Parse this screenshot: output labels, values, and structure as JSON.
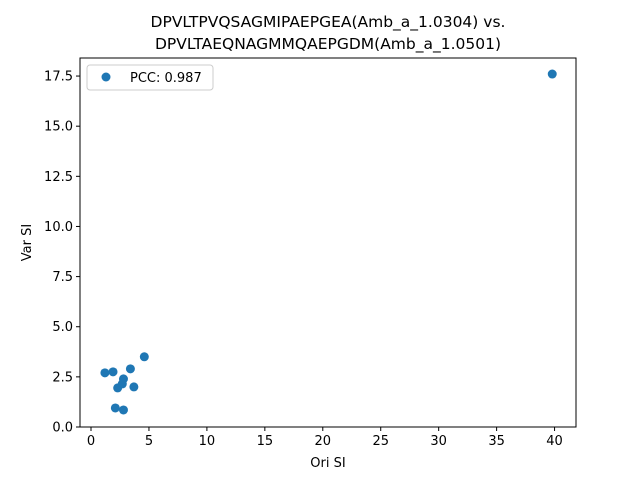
{
  "chart_data": {
    "type": "scatter",
    "title_lines": [
      "DPVLTPVQSAGMIPAEPGEA(Amb_a_1.0304) vs.",
      "DPVLTAEQNAGMMQAEPGDM(Amb_a_1.0501)"
    ],
    "xlabel": "Ori SI",
    "ylabel": "Var SI",
    "xlim": [
      -0.95,
      41.85
    ],
    "ylim": [
      0,
      18.4
    ],
    "xticks": [
      0,
      5,
      10,
      15,
      20,
      25,
      30,
      35,
      40
    ],
    "yticks": [
      0.0,
      2.5,
      5.0,
      7.5,
      10.0,
      12.5,
      15.0,
      17.5
    ],
    "grid": false,
    "legend_position": "upper-left",
    "series": [
      {
        "name": "PCC: 0.987",
        "color": "#1f77b4",
        "x": [
          1.2,
          1.9,
          2.1,
          2.3,
          2.7,
          2.8,
          2.8,
          3.4,
          3.7,
          4.6,
          39.8
        ],
        "y": [
          2.7,
          2.75,
          0.95,
          1.95,
          2.15,
          2.4,
          0.85,
          2.9,
          2.0,
          3.5,
          17.6
        ]
      }
    ]
  }
}
